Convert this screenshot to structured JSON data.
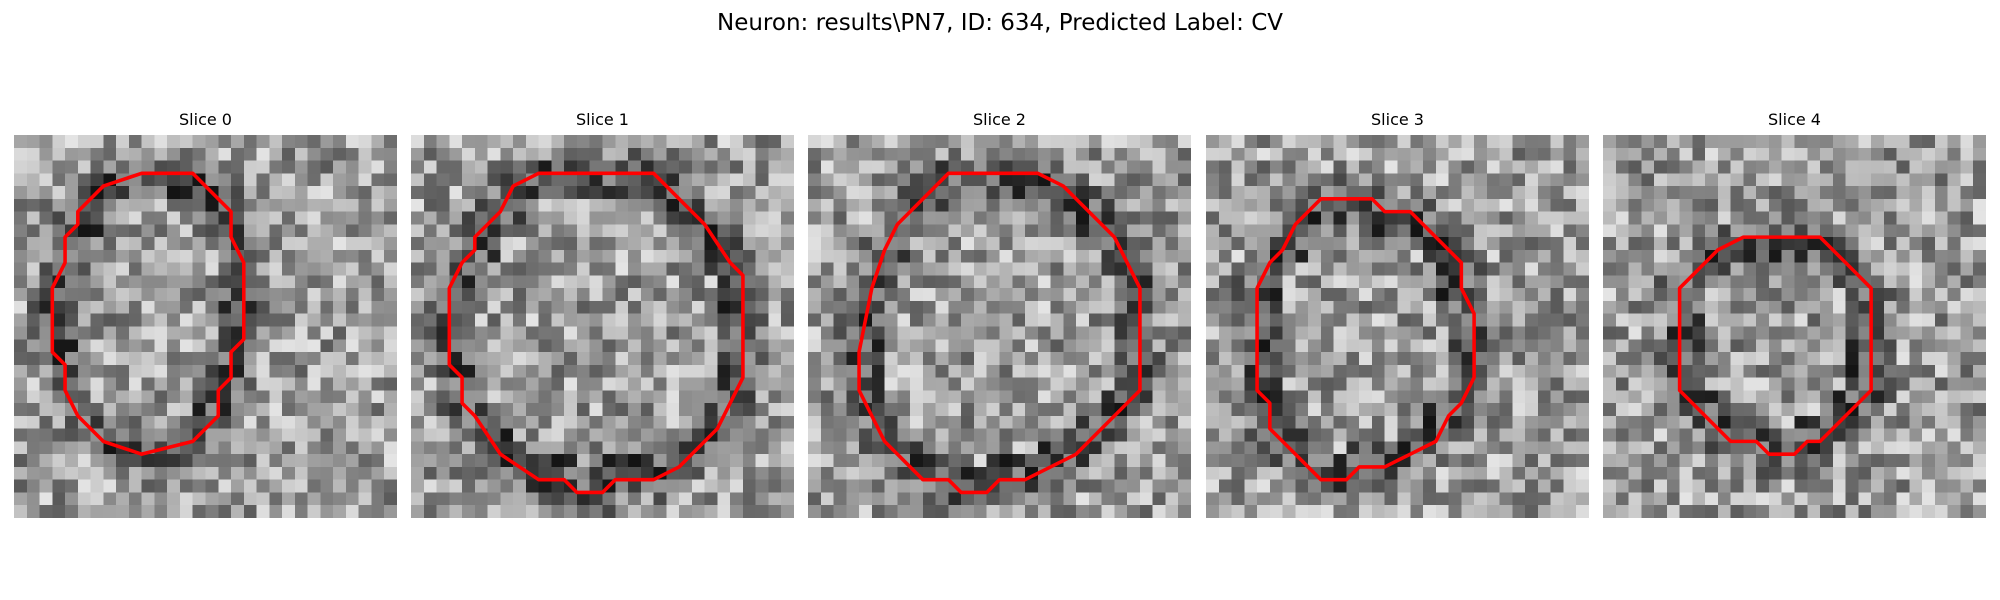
{
  "figure": {
    "title": "Neuron: results\\PN7, ID: 634, Predicted Label: CV",
    "contour_color": "#ff0000",
    "colormap": "gray",
    "panels": [
      {
        "title": "Slice 0",
        "contour": [
          [
            10,
            3
          ],
          [
            14,
            3
          ],
          [
            16,
            5
          ],
          [
            17,
            6
          ],
          [
            17,
            8
          ],
          [
            18,
            10
          ],
          [
            18,
            16
          ],
          [
            17,
            17
          ],
          [
            17,
            19
          ],
          [
            16,
            20
          ],
          [
            16,
            22
          ],
          [
            14,
            24
          ],
          [
            10,
            25
          ],
          [
            7,
            24
          ],
          [
            5,
            22
          ],
          [
            4,
            20
          ],
          [
            4,
            18
          ],
          [
            3,
            17
          ],
          [
            3,
            12
          ],
          [
            4,
            10
          ],
          [
            4,
            8
          ],
          [
            5,
            7
          ],
          [
            5,
            6
          ],
          [
            7,
            4
          ]
        ],
        "seed": 11
      },
      {
        "title": "Slice 1",
        "contour": [
          [
            10,
            3
          ],
          [
            19,
            3
          ],
          [
            20,
            4
          ],
          [
            21,
            5
          ],
          [
            23,
            7
          ],
          [
            25,
            10
          ],
          [
            26,
            11
          ],
          [
            26,
            19
          ],
          [
            25,
            21
          ],
          [
            24,
            23
          ],
          [
            22,
            25
          ],
          [
            21,
            26
          ],
          [
            19,
            27
          ],
          [
            16,
            27
          ],
          [
            15,
            28
          ],
          [
            13,
            28
          ],
          [
            12,
            27
          ],
          [
            10,
            27
          ],
          [
            7,
            25
          ],
          [
            5,
            22
          ],
          [
            4,
            21
          ],
          [
            4,
            19
          ],
          [
            3,
            18
          ],
          [
            3,
            12
          ],
          [
            4,
            10
          ],
          [
            5,
            9
          ],
          [
            5,
            8
          ],
          [
            7,
            6
          ],
          [
            8,
            4
          ]
        ],
        "seed": 23
      },
      {
        "title": "Slice 2",
        "contour": [
          [
            11,
            3
          ],
          [
            18,
            3
          ],
          [
            20,
            4
          ],
          [
            21,
            5
          ],
          [
            23,
            7
          ],
          [
            24,
            8
          ],
          [
            25,
            10
          ],
          [
            26,
            12
          ],
          [
            26,
            20
          ],
          [
            24,
            22
          ],
          [
            22,
            24
          ],
          [
            21,
            25
          ],
          [
            19,
            26
          ],
          [
            17,
            27
          ],
          [
            15,
            27
          ],
          [
            14,
            28
          ],
          [
            12,
            28
          ],
          [
            11,
            27
          ],
          [
            9,
            27
          ],
          [
            7,
            25
          ],
          [
            6,
            24
          ],
          [
            5,
            22
          ],
          [
            4,
            20
          ],
          [
            4,
            17
          ],
          [
            5,
            12
          ],
          [
            6,
            9
          ],
          [
            7,
            7
          ],
          [
            8,
            6
          ],
          [
            10,
            4
          ]
        ],
        "seed": 37
      },
      {
        "title": "Slice 3",
        "contour": [
          [
            9,
            5
          ],
          [
            13,
            5
          ],
          [
            14,
            6
          ],
          [
            16,
            6
          ],
          [
            17,
            7
          ],
          [
            19,
            9
          ],
          [
            20,
            10
          ],
          [
            20,
            12
          ],
          [
            21,
            14
          ],
          [
            21,
            19
          ],
          [
            20,
            21
          ],
          [
            19,
            22
          ],
          [
            18,
            24
          ],
          [
            16,
            25
          ],
          [
            14,
            26
          ],
          [
            12,
            26
          ],
          [
            11,
            27
          ],
          [
            9,
            27
          ],
          [
            8,
            26
          ],
          [
            7,
            25
          ],
          [
            6,
            24
          ],
          [
            5,
            23
          ],
          [
            5,
            21
          ],
          [
            4,
            20
          ],
          [
            4,
            12
          ],
          [
            5,
            10
          ],
          [
            6,
            9
          ],
          [
            7,
            7
          ]
        ],
        "seed": 53
      },
      {
        "title": "Slice 4",
        "contour": [
          [
            13,
            8
          ],
          [
            17,
            8
          ],
          [
            19,
            10
          ],
          [
            21,
            12
          ],
          [
            21,
            20
          ],
          [
            19,
            22
          ],
          [
            17,
            24
          ],
          [
            16,
            24
          ],
          [
            15,
            25
          ],
          [
            13,
            25
          ],
          [
            12,
            24
          ],
          [
            10,
            24
          ],
          [
            8,
            22
          ],
          [
            6,
            20
          ],
          [
            6,
            12
          ],
          [
            9,
            9
          ],
          [
            11,
            8
          ]
        ],
        "seed": 71
      }
    ]
  }
}
